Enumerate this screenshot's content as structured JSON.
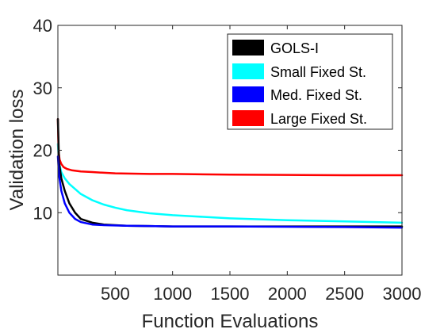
{
  "chart_data": {
    "type": "line",
    "title": "",
    "xlabel": "Function Evaluations",
    "ylabel": "Validation loss",
    "xlim": [
      0,
      3000
    ],
    "ylim": [
      0,
      40
    ],
    "xticks": [
      500,
      1000,
      1500,
      2000,
      2500,
      3000
    ],
    "yticks": [
      10,
      20,
      30,
      40
    ],
    "grid": false,
    "legend_position": "top-right",
    "series": [
      {
        "name": "GOLS-I",
        "color": "#000000",
        "x": [
          0,
          10,
          30,
          60,
          100,
          150,
          200,
          300,
          400,
          600,
          800,
          1000,
          1500,
          2000,
          2500,
          3000
        ],
        "y": [
          25.0,
          18.0,
          15.5,
          13.5,
          11.5,
          10.0,
          9.0,
          8.4,
          8.1,
          7.9,
          7.85,
          7.8,
          7.8,
          7.8,
          7.8,
          7.8
        ]
      },
      {
        "name": "Small Fixed St.",
        "color": "#00ffff",
        "x": [
          0,
          10,
          30,
          60,
          100,
          200,
          300,
          400,
          500,
          600,
          800,
          1000,
          1200,
          1500,
          2000,
          2500,
          3000
        ],
        "y": [
          21.0,
          18.0,
          16.5,
          15.5,
          14.6,
          13.0,
          12.0,
          11.3,
          10.8,
          10.4,
          9.9,
          9.6,
          9.4,
          9.1,
          8.8,
          8.6,
          8.4
        ]
      },
      {
        "name": "Med. Fixed St.",
        "color": "#0000ff",
        "x": [
          0,
          10,
          30,
          60,
          100,
          150,
          200,
          300,
          400,
          600,
          800,
          1000,
          1500,
          2000,
          2500,
          3000
        ],
        "y": [
          19.0,
          16.0,
          13.5,
          11.5,
          10.0,
          9.0,
          8.5,
          8.1,
          8.0,
          7.9,
          7.85,
          7.8,
          7.8,
          7.75,
          7.7,
          7.6
        ]
      },
      {
        "name": "Large Fixed St.",
        "color": "#ff0000",
        "x": [
          0,
          5,
          15,
          30,
          50,
          80,
          120,
          200,
          300,
          500,
          800,
          1000,
          1500,
          2000,
          2500,
          3000
        ],
        "y": [
          25.0,
          20.0,
          18.5,
          17.8,
          17.3,
          17.0,
          16.8,
          16.6,
          16.5,
          16.3,
          16.2,
          16.2,
          16.1,
          16.05,
          16.0,
          16.0
        ]
      }
    ]
  }
}
